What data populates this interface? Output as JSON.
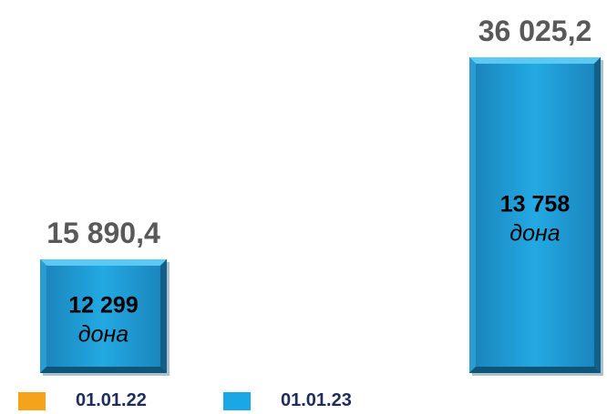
{
  "chart_data": {
    "type": "bar",
    "categories": [
      "01.01.22",
      "01.01.23"
    ],
    "values": [
      15890.4,
      36025.2
    ],
    "value_labels": [
      "15 890,4",
      "36 025,2"
    ],
    "counts": [
      "12 299",
      "13 758"
    ],
    "unit": "дона",
    "ylim": [
      0,
      40000
    ],
    "grid": false,
    "legend_position": "bottom-left",
    "series": [
      {
        "name": "01.01.22",
        "color": "#f5a31a"
      },
      {
        "name": "01.01.23",
        "color": "#1aa7e6"
      }
    ],
    "bar_color": "#1c9fd9"
  },
  "legend": {
    "items": [
      {
        "label": "01.01.22",
        "color": "#f5a31a"
      },
      {
        "label": "01.01.23",
        "color": "#1aa7e6"
      }
    ]
  }
}
